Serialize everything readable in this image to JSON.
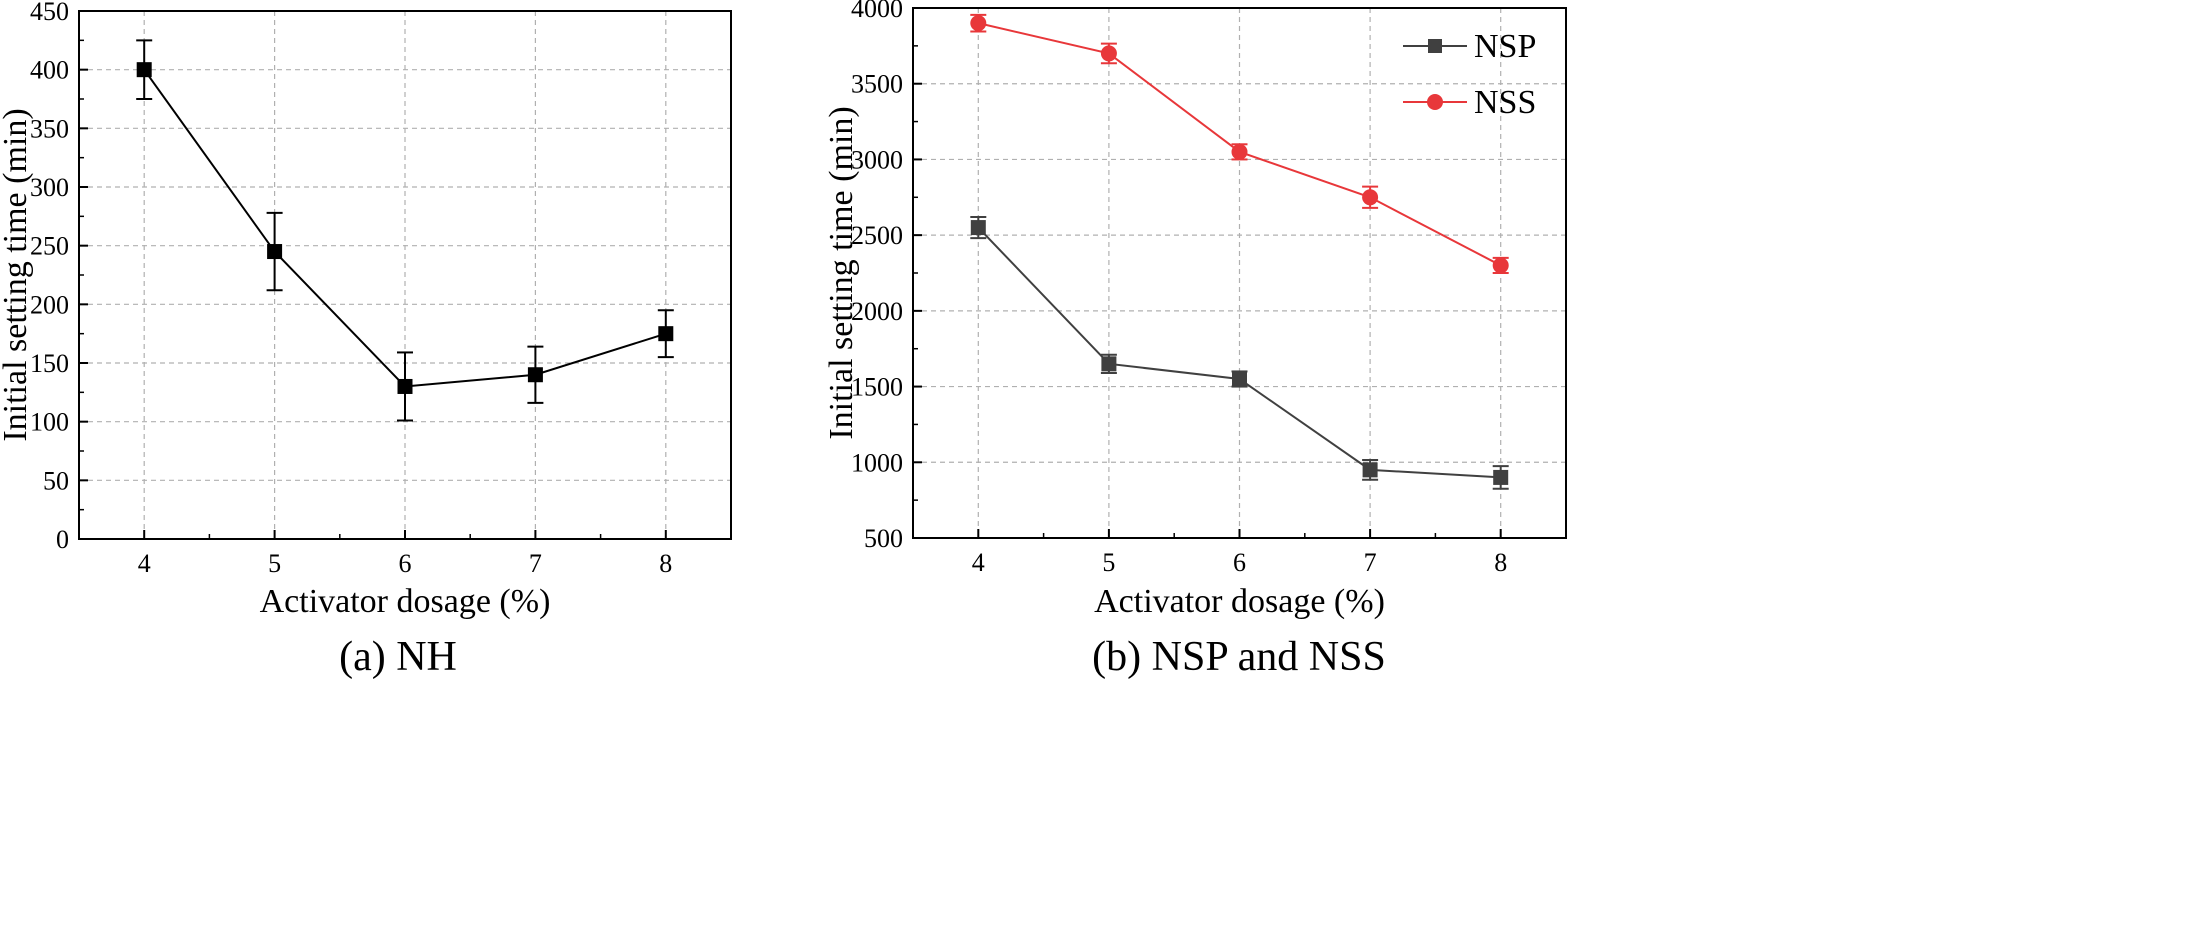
{
  "colors": {
    "nh": "#000000",
    "nsp": "#404040",
    "nss": "#e8373a",
    "grid": "#b0b0b0"
  },
  "chart_data": [
    {
      "type": "line",
      "caption": "(a) NH",
      "xlabel": "Activator dosage (%)",
      "ylabel": "Initial setting time (min)",
      "xlim": [
        3.5,
        8.5
      ],
      "ylim": [
        0,
        450
      ],
      "xticks": [
        4,
        5,
        6,
        7,
        8
      ],
      "xtick_labels": [
        "4",
        "5",
        "6",
        "7",
        "8"
      ],
      "yticks": [
        0,
        50,
        100,
        150,
        200,
        250,
        300,
        350,
        400,
        450
      ],
      "ytick_labels": [
        "0",
        "50",
        "100",
        "150",
        "200",
        "250",
        "300",
        "350",
        "400",
        "450"
      ],
      "grid": true,
      "x": [
        4,
        5,
        6,
        7,
        8
      ],
      "series": [
        {
          "name": "",
          "color": "#000000",
          "marker": "square",
          "values": [
            400,
            245,
            130,
            140,
            175
          ],
          "errors": [
            25,
            33,
            29,
            24,
            20
          ]
        }
      ]
    },
    {
      "type": "line",
      "caption": "(b) NSP and NSS",
      "xlabel": "Activator dosage (%)",
      "ylabel": "Initial setting time (min)",
      "xlim": [
        3.5,
        8.5
      ],
      "ylim": [
        500,
        4000
      ],
      "xticks": [
        4,
        5,
        6,
        7,
        8
      ],
      "xtick_labels": [
        "4",
        "5",
        "6",
        "7",
        "8"
      ],
      "yticks": [
        500,
        1000,
        1500,
        2000,
        2500,
        3000,
        3500,
        4000
      ],
      "ytick_labels": [
        "500",
        "1000",
        "1500",
        "2000",
        "2500",
        "3000",
        "3500",
        "4000"
      ],
      "grid": true,
      "legend_position": "top-right",
      "x": [
        4,
        5,
        6,
        7,
        8
      ],
      "series": [
        {
          "name": "NSP",
          "color": "#404040",
          "marker": "square",
          "values": [
            2550,
            1650,
            1550,
            950,
            900
          ],
          "errors": [
            70,
            60,
            50,
            65,
            75
          ]
        },
        {
          "name": "NSS",
          "color": "#e8373a",
          "marker": "circle",
          "values": [
            3900,
            3700,
            3050,
            2750,
            2300
          ],
          "errors": [
            55,
            65,
            50,
            70,
            50
          ]
        }
      ]
    }
  ]
}
